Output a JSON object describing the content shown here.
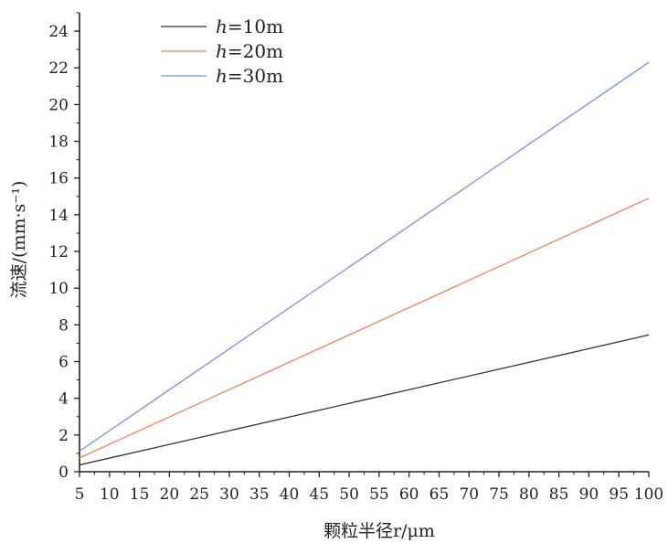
{
  "chart_data": {
    "type": "line",
    "xlabel": "颗粒半径r/μm",
    "ylabel": "流速/(mm·s⁻¹)",
    "xlim": [
      5,
      100
    ],
    "ylim": [
      0,
      25
    ],
    "x_ticks": [
      "5",
      "10",
      "15",
      "20",
      "25",
      "30",
      "35",
      "40",
      "45",
      "50",
      "55",
      "60",
      "65",
      "70",
      "75",
      "80",
      "85",
      "90",
      "95",
      "100"
    ],
    "y_ticks": [
      "0",
      "2",
      "4",
      "6",
      "8",
      "10",
      "12",
      "14",
      "16",
      "18",
      "20",
      "22",
      "24"
    ],
    "grid": false,
    "legend_position": "top-left",
    "series": [
      {
        "name": "h=10m",
        "color": "#333333",
        "x": [
          5,
          100
        ],
        "y": [
          0.37,
          7.45
        ]
      },
      {
        "name": "h=20m",
        "color": "#f08060",
        "x": [
          5,
          100
        ],
        "y": [
          0.75,
          14.9
        ]
      },
      {
        "name": "h=30m",
        "color": "#6f93e6",
        "x": [
          5,
          100
        ],
        "y": [
          1.12,
          22.3
        ]
      }
    ]
  }
}
